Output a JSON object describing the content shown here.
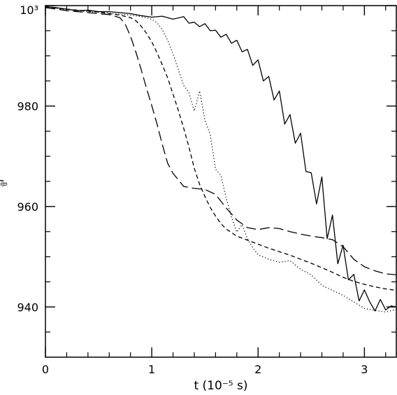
{
  "chart_data": {
    "type": "line",
    "xlabel": "t (10⁻⁵ s)",
    "ylabel": "⅌",
    "xlim": [
      0,
      3.3
    ],
    "ylim": [
      930,
      1000
    ],
    "x_ticks": [
      0,
      1,
      2,
      3
    ],
    "x_tick_labels": [
      "0",
      "1",
      "2",
      "3"
    ],
    "y_ticks": [
      940,
      960,
      980,
      1000
    ],
    "y_tick_labels": [
      "940",
      "960",
      "980",
      "10³"
    ],
    "grid": false,
    "legend": "none",
    "series": [
      {
        "style": "solid",
        "x": [
          0,
          0.1,
          0.2,
          0.3,
          0.4,
          0.5,
          0.6,
          0.7,
          0.8,
          0.9,
          1.0,
          1.1,
          1.2,
          1.3,
          1.35,
          1.4,
          1.45,
          1.5,
          1.55,
          1.6,
          1.65,
          1.7,
          1.75,
          1.8,
          1.85,
          1.9,
          1.95,
          2.0,
          2.05,
          2.1,
          2.15,
          2.2,
          2.25,
          2.3,
          2.35,
          2.4,
          2.45,
          2.5,
          2.55,
          2.6,
          2.65,
          2.7,
          2.75,
          2.8,
          2.85,
          2.9,
          2.95,
          3.0,
          3.05,
          3.1,
          3.15,
          3.2,
          3.25,
          3.3
        ],
        "y": [
          999.8,
          999.6,
          999.3,
          999.0,
          999.1,
          998.8,
          998.8,
          998.6,
          998.4,
          998.0,
          997.7,
          997.9,
          997.3,
          997.8,
          996.5,
          996.7,
          995.8,
          996.4,
          995.0,
          995.1,
          993.7,
          994.3,
          992.5,
          993.1,
          990.8,
          991.3,
          988.1,
          989.2,
          985.0,
          985.9,
          981.2,
          983.0,
          976.4,
          978.3,
          972.6,
          974.6,
          967.0,
          966.7,
          960.5,
          965.9,
          953.6,
          958.3,
          948.6,
          952.3,
          945.4,
          946.5,
          941.2,
          943.4,
          941.0,
          939.2,
          941.5,
          939.4,
          940.2,
          940.0
        ]
      },
      {
        "style": "dotted",
        "x": [
          0,
          0.1,
          0.2,
          0.3,
          0.4,
          0.5,
          0.6,
          0.7,
          0.8,
          0.9,
          1.0,
          1.05,
          1.1,
          1.15,
          1.2,
          1.25,
          1.3,
          1.35,
          1.4,
          1.45,
          1.5,
          1.55,
          1.6,
          1.65,
          1.7,
          1.75,
          1.8,
          1.85,
          1.9,
          1.95,
          2.0,
          2.1,
          2.2,
          2.3,
          2.4,
          2.5,
          2.6,
          2.7,
          2.8,
          2.9,
          3.0,
          3.1,
          3.2,
          3.3
        ],
        "y": [
          999.7,
          999.5,
          999.2,
          999.0,
          998.8,
          998.7,
          998.5,
          998.3,
          998.1,
          997.8,
          997.3,
          996.6,
          995.2,
          993.1,
          990.4,
          987.2,
          984.1,
          982.6,
          979.0,
          983.0,
          977.2,
          974.3,
          967.4,
          966.2,
          961.7,
          957.9,
          954.9,
          956.4,
          953.6,
          951.8,
          950.4,
          949.5,
          948.9,
          949.2,
          947.5,
          946.4,
          944.3,
          943.3,
          942.3,
          941.0,
          939.7,
          939.3,
          939.0,
          939.5
        ]
      },
      {
        "style": "dashed",
        "x": [
          0,
          0.1,
          0.2,
          0.3,
          0.4,
          0.5,
          0.6,
          0.7,
          0.8,
          0.85,
          0.9,
          0.95,
          1.0,
          1.05,
          1.1,
          1.15,
          1.2,
          1.25,
          1.3,
          1.35,
          1.4,
          1.45,
          1.5,
          1.55,
          1.6,
          1.65,
          1.7,
          1.75,
          1.8,
          1.9,
          2.0,
          2.1,
          2.2,
          2.3,
          2.4,
          2.5,
          2.6,
          2.7,
          2.8,
          2.9,
          3.0,
          3.1,
          3.2,
          3.3
        ],
        "y": [
          999.7,
          999.5,
          999.3,
          999.1,
          998.9,
          998.7,
          998.4,
          998.1,
          997.6,
          997.0,
          995.9,
          994.5,
          992.8,
          990.6,
          988.2,
          985.6,
          982.4,
          979.1,
          975.6,
          971.8,
          967.6,
          964.4,
          962.0,
          959.8,
          958.1,
          956.6,
          955.5,
          954.8,
          954.1,
          953.3,
          952.5,
          951.7,
          951.0,
          950.3,
          949.5,
          948.7,
          947.8,
          946.9,
          945.9,
          945.1,
          944.5,
          944.0,
          943.6,
          943.3
        ]
      },
      {
        "style": "longdash",
        "x": [
          0,
          0.1,
          0.2,
          0.3,
          0.4,
          0.5,
          0.6,
          0.7,
          0.75,
          0.8,
          0.85,
          0.9,
          0.95,
          1.0,
          1.05,
          1.1,
          1.15,
          1.2,
          1.25,
          1.3,
          1.4,
          1.5,
          1.6,
          1.7,
          1.8,
          1.9,
          2.0,
          2.1,
          2.2,
          2.3,
          2.4,
          2.5,
          2.6,
          2.7,
          2.8,
          2.9,
          3.0,
          3.1,
          3.2,
          3.3
        ],
        "y": [
          999.6,
          999.3,
          999.0,
          998.8,
          998.6,
          998.4,
          998.2,
          997.6,
          996.3,
          993.9,
          990.8,
          987.3,
          983.6,
          980.1,
          976.4,
          972.3,
          968.6,
          966.6,
          965.3,
          964.0,
          963.6,
          963.4,
          962.4,
          959.7,
          957.3,
          955.8,
          955.4,
          955.8,
          955.6,
          955.0,
          954.5,
          954.1,
          953.8,
          953.4,
          952.0,
          949.5,
          948.0,
          947.2,
          946.6,
          946.4
        ]
      }
    ]
  }
}
